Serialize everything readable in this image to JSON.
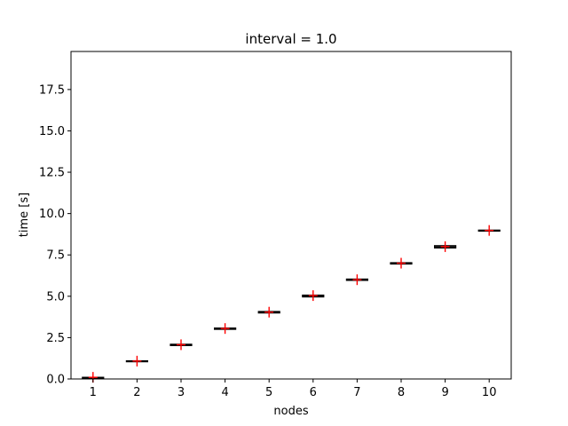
{
  "chart_data": {
    "type": "box",
    "title": "interval = 1.0",
    "xlabel": "nodes",
    "ylabel": "time [s]",
    "categories": [
      "1",
      "2",
      "3",
      "4",
      "5",
      "6",
      "7",
      "8",
      "9",
      "10"
    ],
    "median": [
      0.08,
      1.07,
      2.06,
      3.04,
      4.03,
      5.0,
      5.99,
      6.99,
      7.98,
      8.97
    ],
    "box_low": [
      0.05,
      1.04,
      2.02,
      3.0,
      3.99,
      4.96,
      5.96,
      6.95,
      7.92,
      8.94
    ],
    "box_high": [
      0.1,
      1.1,
      2.1,
      3.08,
      4.08,
      5.07,
      6.04,
      7.03,
      8.06,
      9.0
    ],
    "mean": [
      0.1,
      1.08,
      2.07,
      3.05,
      4.04,
      5.04,
      6.0,
      7.0,
      8.0,
      8.98
    ],
    "ylim": [
      0,
      19.8
    ],
    "yticks": [
      "0.0",
      "2.5",
      "5.0",
      "7.5",
      "10.0",
      "12.5",
      "15.0",
      "17.5"
    ],
    "mean_color": "#ff0000",
    "box_color": "#000000"
  }
}
